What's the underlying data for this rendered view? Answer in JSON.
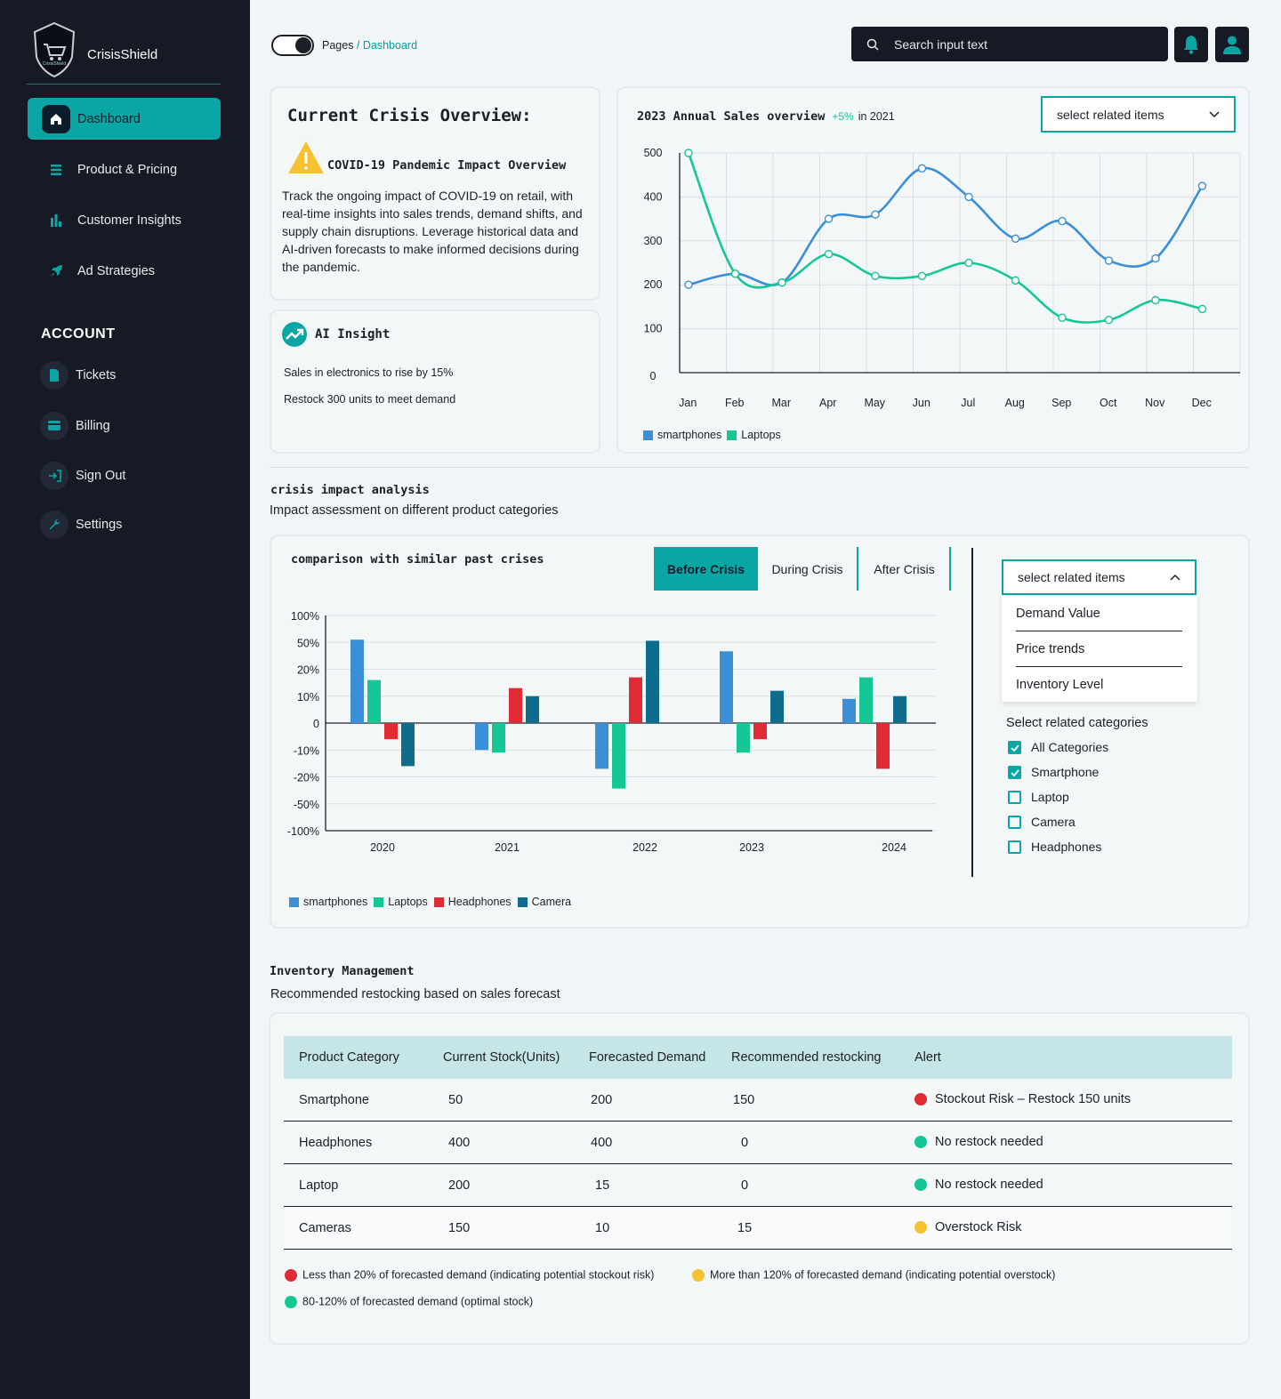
{
  "brand": {
    "name": "CrisisShield",
    "logo_text": "CrisisShield"
  },
  "sidebar": {
    "nav": [
      {
        "label": "Dashboard",
        "icon": "home-icon"
      },
      {
        "label": "Product & Pricing",
        "icon": "list-icon"
      },
      {
        "label": "Customer Insights",
        "icon": "bar-chart-icon"
      },
      {
        "label": "Ad Strategies",
        "icon": "rocket-icon"
      }
    ],
    "account_title": "ACCOUNT",
    "account": [
      {
        "label": "Tickets",
        "icon": "document-icon"
      },
      {
        "label": "Billing",
        "icon": "credit-card-icon"
      },
      {
        "label": "Sign Out",
        "icon": "sign-out-icon"
      },
      {
        "label": "Settings",
        "icon": "wrench-icon"
      }
    ]
  },
  "header": {
    "breadcrumb_root": "Pages",
    "breadcrumb_sep": " / ",
    "breadcrumb_current": "Dashboard",
    "search_placeholder": "Search input text"
  },
  "overview": {
    "title": "Current Crisis Overview:",
    "subtitle": "COVID-19 Pandemic Impact Overview",
    "body": "Track the ongoing impact of COVID-19 on retail, with real-time insights into sales trends, demand shifts, and supply chain disruptions. Leverage historical data and AI-driven forecasts to make informed decisions during the pandemic."
  },
  "ai_insight": {
    "title": "AI Insight",
    "lines": [
      "Sales in electronics to rise by 15%",
      "Restock 300 units to meet demand"
    ]
  },
  "sales_card": {
    "title": "2023 Annual Sales overview",
    "change": "+5%",
    "change_suffix": "in 2021",
    "select_label": "select related items"
  },
  "section_crisis": {
    "title": "crisis impact analysis",
    "subtitle": "Impact assessment on different product categories"
  },
  "comparison": {
    "title": "comparison with similar past crises",
    "tabs": [
      "Before Crisis",
      "During Crisis",
      "After Crisis"
    ],
    "active_tab": "Before Crisis",
    "select_label": "select related items",
    "dropdown_options": [
      "Demand Value",
      "Price trends",
      "Inventory Level"
    ],
    "categories_title": "Select related categories",
    "categories": [
      {
        "label": "All Categories",
        "checked": true
      },
      {
        "label": "Smartphone",
        "checked": true
      },
      {
        "label": "Laptop",
        "checked": false
      },
      {
        "label": "Camera",
        "checked": false
      },
      {
        "label": "Headphones",
        "checked": false
      }
    ]
  },
  "section_inventory": {
    "title": "Inventory Management",
    "subtitle": "Recommended restocking based on sales forecast"
  },
  "inventory": {
    "headers": [
      "Product Category",
      "Current Stock(Units)",
      "Forecasted Demand",
      "Recommended restocking",
      "Alert"
    ],
    "rows": [
      {
        "category": "Smartphone",
        "stock": "50",
        "demand": "200",
        "restock": "150",
        "alert": "Stockout Risk – Restock 150 units",
        "alert_color": "#e02b35"
      },
      {
        "category": "Headphones",
        "stock": "400",
        "demand": "400",
        "restock": "0",
        "alert": "No restock needed",
        "alert_color": "#16c796"
      },
      {
        "category": "Laptop",
        "stock": "200",
        "demand": "15",
        "restock": "0",
        "alert": "No restock needed",
        "alert_color": "#16c796"
      },
      {
        "category": "Cameras",
        "stock": "150",
        "demand": "10",
        "restock": "15",
        "alert": "Overstock Risk",
        "alert_color": "#f6c12e"
      }
    ],
    "legend": [
      {
        "text": "Less than 20% of forecasted demand (indicating potential stockout risk)",
        "color": "#e02b35"
      },
      {
        "text": "More than 120% of forecasted demand (indicating potential overstock)",
        "color": "#f6c12e"
      },
      {
        "text": "80-120% of forecasted demand (optimal stock)",
        "color": "#16c796"
      }
    ]
  },
  "colors": {
    "accent": "#0aa5a5",
    "sidebar": "#161a24",
    "smartphones": "#3b8fd9",
    "laptops": "#16c796",
    "headphones": "#e02b35",
    "camera": "#0e6d8c"
  },
  "chart_data": [
    {
      "type": "line",
      "title": "2023 Annual Sales overview",
      "categories": [
        "Jan",
        "Feb",
        "Mar",
        "Apr",
        "May",
        "Jun",
        "Jul",
        "Aug",
        "Sep",
        "Oct",
        "Nov",
        "Dec"
      ],
      "ylim": [
        0,
        500
      ],
      "yticks": [
        "0",
        "100",
        "200",
        "300",
        "400",
        "500"
      ],
      "series": [
        {
          "name": "smartphones",
          "color": "#3b8fd9",
          "values": [
            200,
            225,
            205,
            350,
            360,
            465,
            400,
            305,
            345,
            255,
            260,
            425
          ]
        },
        {
          "name": "Laptops",
          "color": "#16c796",
          "values": [
            500,
            225,
            205,
            270,
            220,
            220,
            250,
            210,
            125,
            120,
            165,
            145
          ]
        }
      ]
    },
    {
      "type": "bar",
      "title": "comparison with similar past crises",
      "categories": [
        "2020",
        "2021",
        "2022",
        "2023",
        "2024"
      ],
      "yticks": [
        "100%",
        "50%",
        "20%",
        "10%",
        "0",
        "-10%",
        "-20%",
        "-50%",
        "-100%"
      ],
      "series": [
        {
          "name": "smartphones",
          "color": "#3b8fd9",
          "values": [
            55,
            -10,
            -17,
            40,
            9
          ]
        },
        {
          "name": "Laptops",
          "color": "#16c796",
          "values": [
            16,
            -11,
            -33,
            -11,
            17
          ]
        },
        {
          "name": "Headphones",
          "color": "#e02b35",
          "values": [
            -6,
            13,
            17,
            -6,
            -17
          ]
        },
        {
          "name": "Camera",
          "color": "#0e6d8c",
          "values": [
            -16,
            10,
            53,
            12,
            10
          ]
        }
      ]
    }
  ]
}
